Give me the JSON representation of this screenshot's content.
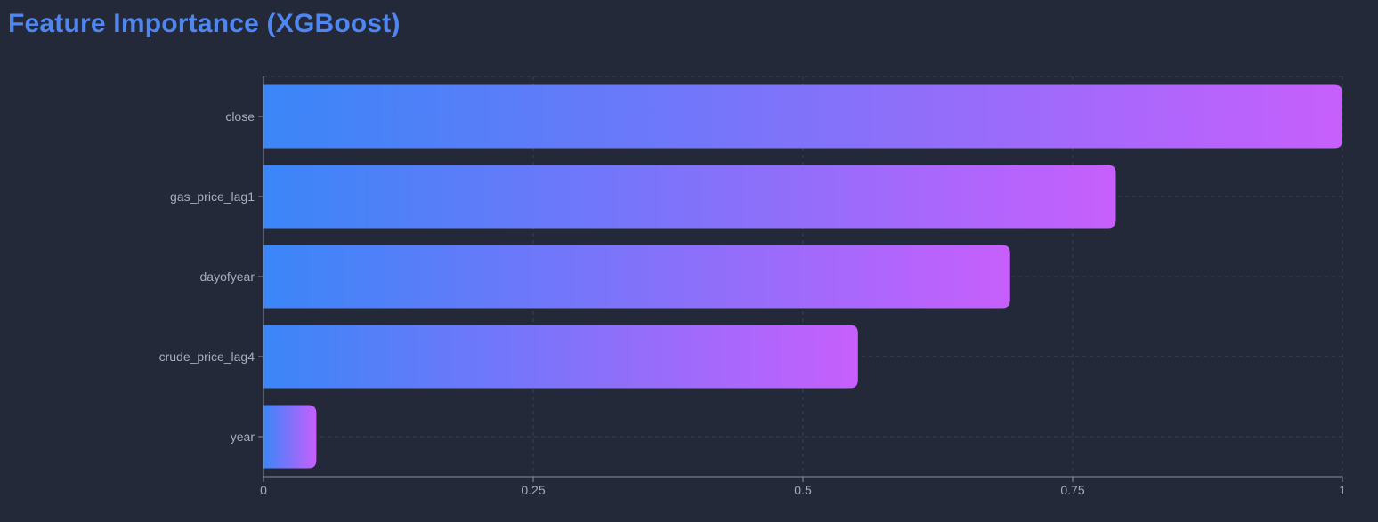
{
  "page": {
    "title": "Feature Importance (XGBoost)"
  },
  "colors": {
    "background": "#232939",
    "title": "#4f86f0",
    "bar_gradient_start": "#3a86f8",
    "bar_gradient_end": "#c75ffc",
    "grid": "#3a4154",
    "axis": "#8a90a0",
    "tick_text": "#a6adbb"
  },
  "chart_data": {
    "type": "bar",
    "orientation": "horizontal",
    "categories": [
      "close",
      "gas_price_lag1",
      "dayofyear",
      "crude_price_lag4",
      "year"
    ],
    "values": [
      1.0,
      0.79,
      0.692,
      0.551,
      0.049
    ],
    "xlim": [
      0,
      1
    ],
    "xticks": [
      0,
      0.25,
      0.5,
      0.75,
      1
    ],
    "xtick_labels": [
      "0",
      "0.25",
      "0.5",
      "0.75",
      "1"
    ],
    "grid": true,
    "legend": "none"
  }
}
